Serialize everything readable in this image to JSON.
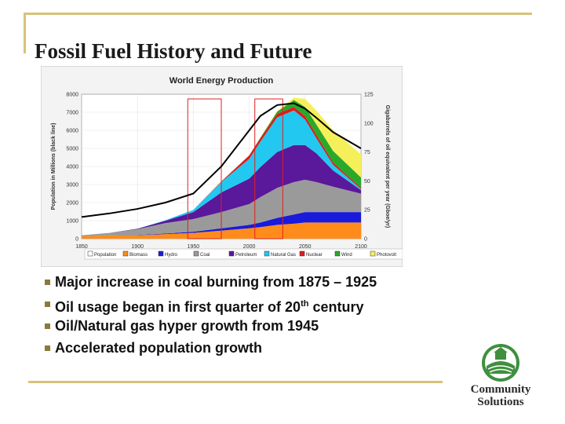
{
  "slide": {
    "title": "Fossil Fuel History and Future",
    "bullets": [
      {
        "text": "Major increase in coal burning from 1875 – 1925"
      },
      {
        "text": "Oil usage began in first quarter of 20",
        "sup": "th",
        "tail": " century"
      },
      {
        "text": "Oil/Natural gas hyper growth from 1945"
      },
      {
        "text": "Accelerated population growth"
      }
    ],
    "logo": {
      "line1": "Community",
      "line2": "Solutions"
    }
  },
  "chart_data": {
    "type": "area",
    "title": "World Energy Production",
    "ylabel_left": "Population in Millions (black line)",
    "ylabel_right": "Gigabarrels of oil equivalent per year (Gboe/yr)",
    "x_ticks": [
      "1850",
      "1900",
      "1950",
      "2000",
      "2050",
      "2100"
    ],
    "y_left_ticks": [
      "0",
      "1000",
      "2000",
      "3000",
      "4000",
      "5000",
      "6000",
      "7000",
      "8000"
    ],
    "y_right_ticks": [
      "0",
      "25",
      "50",
      "75",
      "100",
      "125"
    ],
    "xlim": [
      1850,
      2100
    ],
    "ylim_left": [
      0,
      8000
    ],
    "ylim_right": [
      0,
      125
    ],
    "grid": true,
    "legend_placement": "bottom",
    "x": [
      1850,
      1875,
      1900,
      1925,
      1950,
      1975,
      2000,
      2010,
      2025,
      2040,
      2050,
      2060,
      2075,
      2100
    ],
    "series": [
      {
        "name": "Biomass",
        "color": "#ff8c1a",
        "values": [
          2,
          3,
          3,
          4,
          5,
          7,
          9,
          10,
          12,
          13,
          14,
          14,
          14,
          14
        ]
      },
      {
        "name": "Hydro",
        "color": "#1a1adb",
        "values": [
          0,
          0,
          0.2,
          0.5,
          1,
          2,
          3,
          4,
          6,
          8,
          9,
          9,
          9,
          9
        ]
      },
      {
        "name": "Coal",
        "color": "#9a9a9a",
        "values": [
          1,
          2,
          5,
          9,
          11,
          14,
          18,
          22,
          26,
          28,
          28,
          26,
          22,
          16
        ]
      },
      {
        "name": "Petroleum",
        "color": "#5a189a",
        "values": [
          0,
          0,
          0.5,
          2,
          6,
          17,
          22,
          26,
          31,
          32,
          30,
          25,
          14,
          3
        ]
      },
      {
        "name": "Natural Gas",
        "color": "#22c8f0",
        "values": [
          0,
          0,
          0,
          0.5,
          2,
          9,
          17,
          22,
          30,
          30,
          22,
          13,
          5,
          1
        ]
      },
      {
        "name": "Nuclear",
        "color": "#e01a1a",
        "values": [
          0,
          0,
          0,
          0,
          0,
          0.5,
          3,
          3,
          3,
          3,
          3,
          3,
          2,
          1
        ]
      },
      {
        "name": "Wind",
        "color": "#2aa82a",
        "values": [
          0,
          0,
          0,
          0,
          0,
          0,
          0.2,
          0.5,
          2,
          6,
          8,
          9,
          10,
          9
        ]
      },
      {
        "name": "Photovolt",
        "color": "#f5f05a",
        "values": [
          0,
          0,
          0,
          0,
          0,
          0,
          0,
          0.1,
          0.5,
          2,
          7,
          12,
          18,
          20
        ]
      }
    ],
    "population": {
      "name": "Population",
      "color": "#000000",
      "values": [
        1200,
        1400,
        1650,
        2000,
        2500,
        4000,
        6000,
        6800,
        7400,
        7500,
        7200,
        6700,
        5900,
        5000
      ]
    },
    "highlight_boxes": [
      [
        1945,
        1975
      ],
      [
        2005,
        2030
      ]
    ],
    "highlight_color": "#e02020"
  }
}
